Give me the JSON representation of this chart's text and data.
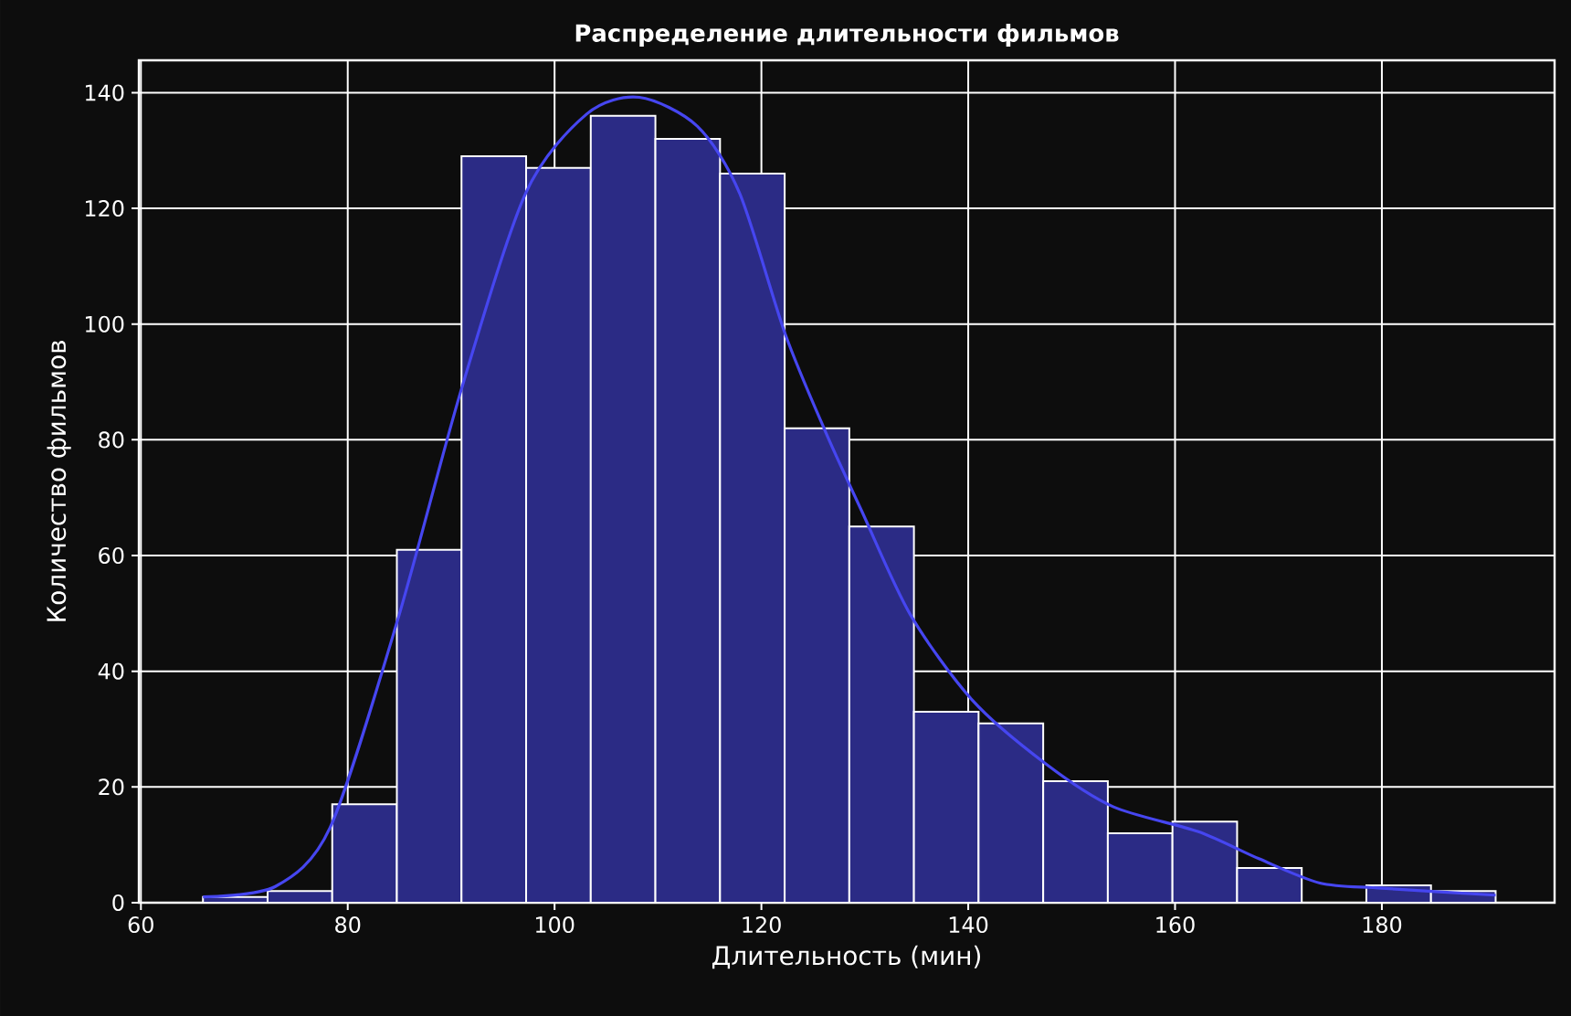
{
  "chart_data": {
    "type": "histogram",
    "title": "Распределение длительности фильмов",
    "xlabel": "Длительность (мин)",
    "ylabel": "Количество фильмов",
    "xlim": [
      59.8,
      196.7
    ],
    "ylim": [
      0,
      145.6
    ],
    "xticks": [
      60,
      80,
      100,
      120,
      140,
      160,
      180
    ],
    "yticks": [
      0,
      20,
      40,
      60,
      80,
      100,
      120,
      140
    ],
    "grid": true,
    "series": [
      {
        "type": "histogram",
        "color": "#2b2b85",
        "bins": [
          66,
          72.25,
          78.5,
          84.75,
          91,
          97.25,
          103.5,
          109.75,
          116,
          122.25,
          128.5,
          134.75,
          141,
          147.25,
          153.5,
          159.75,
          166,
          172.25,
          178.5,
          184.75,
          191
        ],
        "values": [
          1,
          2,
          17,
          61,
          129,
          127,
          136,
          132,
          126,
          82,
          65,
          33,
          31,
          21,
          12,
          14,
          6,
          0,
          3,
          2
        ]
      },
      {
        "type": "line",
        "color": "#4646f0",
        "x": [
          66.0,
          73.0,
          78.3,
          84.8,
          91.0,
          97.2,
          103.1,
          108.2,
          113.8,
          117.9,
          122.3,
          126.2,
          129.7,
          134.4,
          140.4,
          147.5,
          154.0,
          162.2,
          168.1,
          174.0,
          180.0,
          191.0
        ],
        "values": [
          1.0,
          2.8,
          13,
          48.7,
          88.8,
          122.6,
          136.3,
          139.2,
          134.2,
          122.6,
          98.3,
          81.4,
          67.7,
          49.8,
          35.0,
          24.0,
          16.6,
          12.3,
          7.6,
          3.4,
          2.5,
          1.3
        ]
      }
    ]
  }
}
